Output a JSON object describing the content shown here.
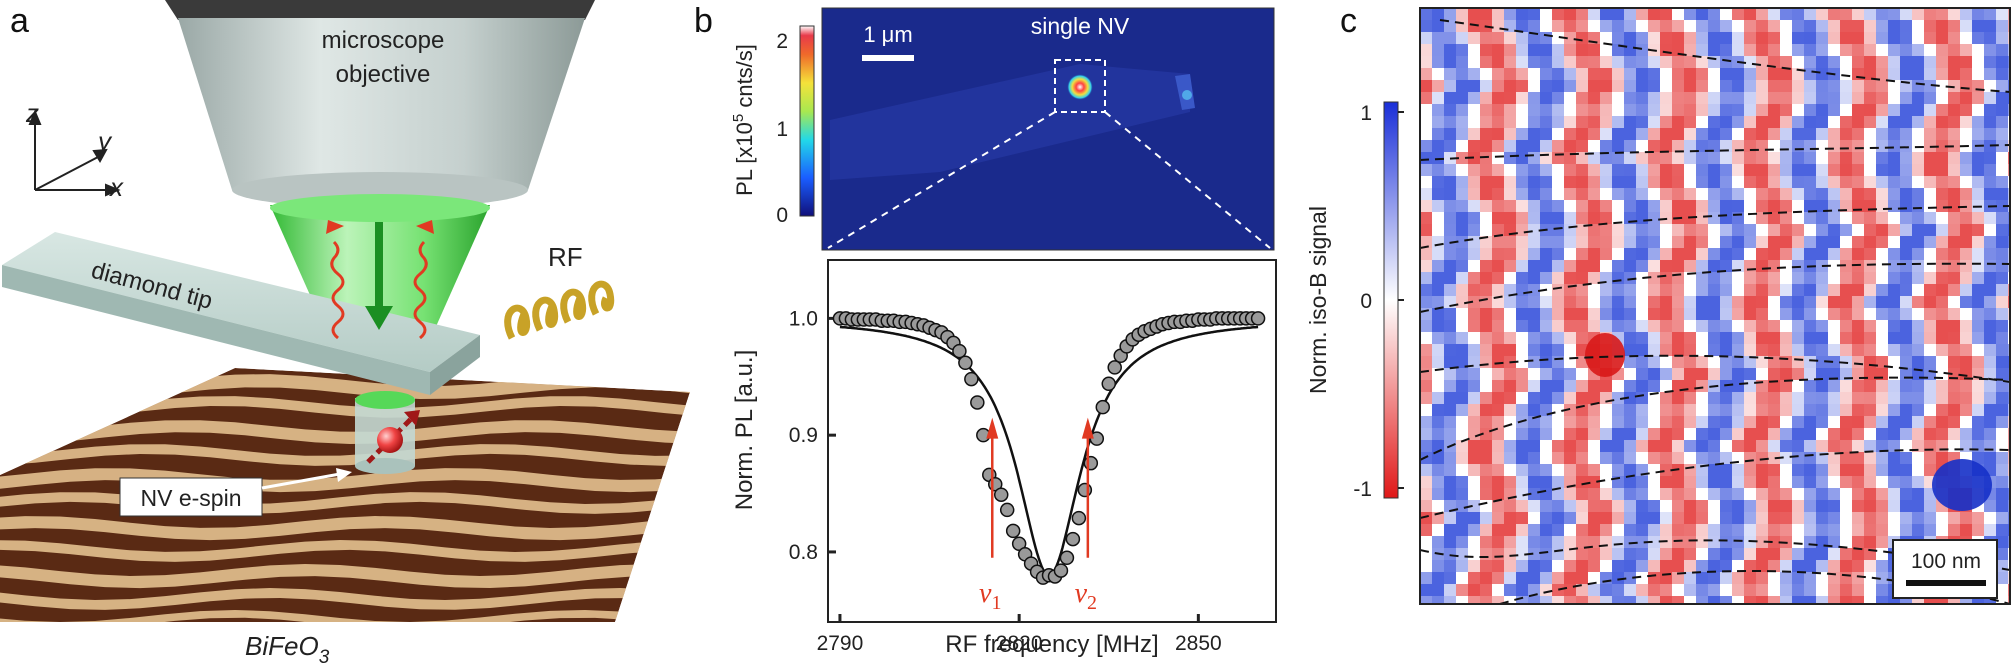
{
  "panels": {
    "a": {
      "letter": "a",
      "objective_label_1": "microscope",
      "objective_label_2": "objective",
      "axes": {
        "z": "z",
        "y": "y",
        "x": "x"
      },
      "tip_label": "diamond tip",
      "rf_label": "RF",
      "spin_label": "NV e-spin",
      "sample_label": "BiFeO",
      "sample_subscript": "3",
      "colors": {
        "objective": "#c9d4d2",
        "green": "#38d23a",
        "tip": "#bcd3cd",
        "rf_coil": "#c8a227",
        "red_wave": "#e13a22",
        "arrow_green": "#1b8f22"
      }
    },
    "b": {
      "letter": "b",
      "pl_map": {
        "scale_bar_label": "1 μm",
        "spot_label": "single NV",
        "colorbar_title": "PL [x10",
        "colorbar_title_sup": "5",
        "colorbar_title_end": " cnts/s]",
        "colorbar_ticks": [
          "0",
          "1",
          "2"
        ]
      },
      "colors": {
        "map_bg": "#1a2a8c",
        "marker": "#9a9a9a",
        "fit": "#111111"
      }
    },
    "c": {
      "letter": "c",
      "colorbar_title": "Norm. iso-B signal",
      "colorbar_ticks": [
        "1",
        "0",
        "-1"
      ],
      "scale_bar_label": "100 nm",
      "colors": {
        "positive": "#1a3fd1",
        "negative": "#e02020",
        "zero": "#ffffff"
      }
    }
  },
  "chart_data": {
    "type": "scatter",
    "title": "",
    "xlabel": "RF frequency [MHz]",
    "ylabel": "Norm. PL [a.u.]",
    "xlim": [
      2788,
      2863
    ],
    "ylim": [
      0.74,
      1.05
    ],
    "xticks": [
      "2790",
      "2820",
      "2850"
    ],
    "yticks": [
      "0.8",
      "0.9",
      "1.0"
    ],
    "annotations": [
      {
        "text": "ν",
        "sub": "1",
        "x": 2815.5
      },
      {
        "text": "ν",
        "sub": "2",
        "x": 2831.5
      }
    ],
    "lorentzian": {
      "baseline": 1.0,
      "depth": 0.22,
      "center": 2825,
      "hwhm": 6.5
    },
    "x": [
      2790,
      2791,
      2792,
      2793,
      2794,
      2795,
      2796,
      2797,
      2798,
      2799,
      2800,
      2801,
      2802,
      2803,
      2804,
      2805,
      2806,
      2807,
      2808,
      2809,
      2810,
      2811,
      2812,
      2813,
      2814,
      2815,
      2816,
      2817,
      2818,
      2819,
      2820,
      2821,
      2822,
      2823,
      2824,
      2825,
      2826,
      2827,
      2828,
      2829,
      2830,
      2831,
      2832,
      2833,
      2834,
      2835,
      2836,
      2837,
      2838,
      2839,
      2840,
      2841,
      2842,
      2843,
      2844,
      2845,
      2846,
      2847,
      2848,
      2849,
      2850,
      2851,
      2852,
      2853,
      2854,
      2855,
      2856,
      2857,
      2858,
      2859,
      2860
    ],
    "y": [
      1.0,
      1.0,
      0.999,
      0.999,
      0.999,
      0.999,
      0.999,
      0.998,
      0.998,
      0.998,
      0.997,
      0.997,
      0.996,
      0.995,
      0.994,
      0.992,
      0.99,
      0.988,
      0.984,
      0.979,
      0.972,
      0.962,
      0.948,
      0.928,
      0.9,
      0.866,
      0.858,
      0.849,
      0.836,
      0.818,
      0.807,
      0.798,
      0.79,
      0.783,
      0.778,
      0.78,
      0.779,
      0.784,
      0.795,
      0.811,
      0.829,
      0.853,
      0.876,
      0.897,
      0.924,
      0.944,
      0.958,
      0.968,
      0.976,
      0.982,
      0.986,
      0.989,
      0.991,
      0.993,
      0.995,
      0.996,
      0.997,
      0.997,
      0.998,
      0.998,
      0.999,
      0.999,
      0.999,
      1.0,
      1.0,
      1.0,
      1.0,
      1.0,
      1.0,
      1.0,
      1.0
    ]
  }
}
